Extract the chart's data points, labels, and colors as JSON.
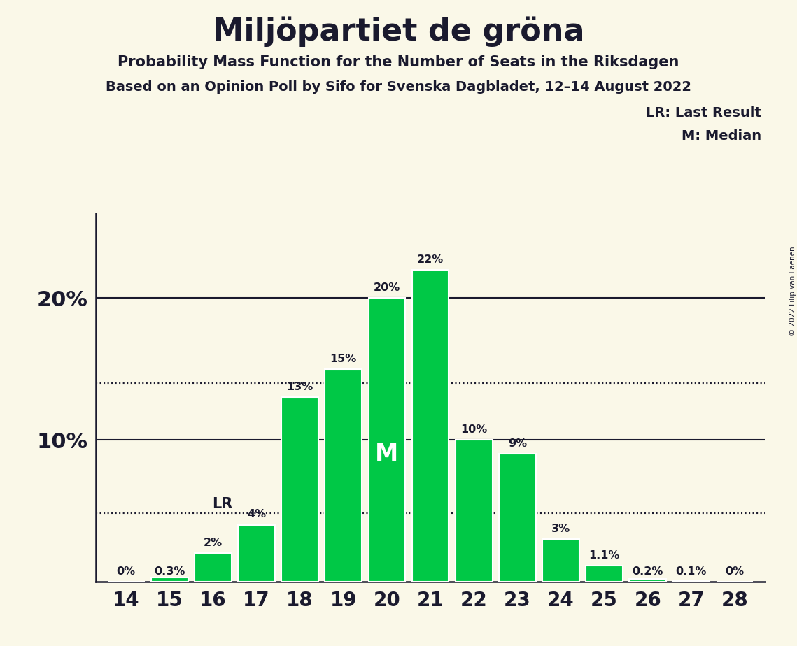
{
  "title": "Miljöpartiet de gröna",
  "subtitle1": "Probability Mass Function for the Number of Seats in the Riksdagen",
  "subtitle2": "Based on an Opinion Poll by Sifo for Svenska Dagbladet, 12–14 August 2022",
  "copyright": "© 2022 Filip van Laenen",
  "seats": [
    14,
    15,
    16,
    17,
    18,
    19,
    20,
    21,
    22,
    23,
    24,
    25,
    26,
    27,
    28
  ],
  "probabilities": [
    0.0,
    0.3,
    2.0,
    4.0,
    13.0,
    15.0,
    20.0,
    22.0,
    10.0,
    9.0,
    3.0,
    1.1,
    0.2,
    0.1,
    0.0
  ],
  "bar_color": "#00C846",
  "bar_edge_color": "#ffffff",
  "background_color": "#FAF8E8",
  "text_color": "#1a1a2e",
  "lr_seat": 17,
  "lr_value": 4.0,
  "median_seat": 20,
  "median_value": 20.0,
  "dotted_line_lr": 4.8,
  "dotted_line_ref": 14.0,
  "ylim": [
    0,
    26
  ],
  "legend_lr": "LR: Last Result",
  "legend_m": "M: Median"
}
